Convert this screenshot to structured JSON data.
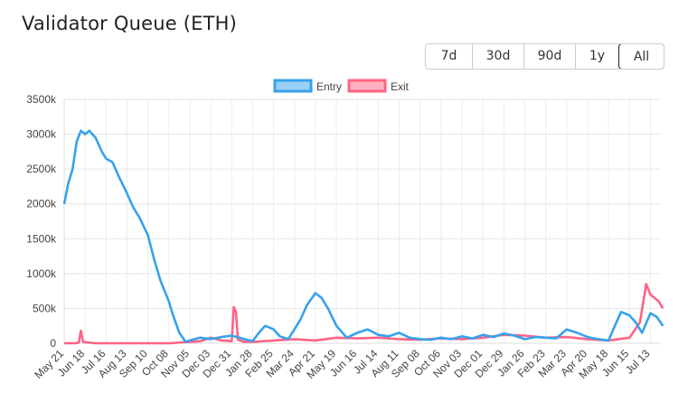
{
  "title": "Validator Queue (ETH)",
  "ranges": [
    "7d",
    "30d",
    "90d",
    "1y",
    "All"
  ],
  "active_range": "All",
  "colors": {
    "entry": "#36a2eb",
    "entry_fill": "#9ad0f5",
    "exit": "#ff6384",
    "exit_fill": "#ffb1c1"
  },
  "chart_data": {
    "type": "line",
    "title": "",
    "xlabel": "",
    "ylabel": "",
    "ylim": [
      0,
      3500
    ],
    "y_ticks": [
      "0",
      "500k",
      "1000k",
      "1500k",
      "2000k",
      "2500k",
      "3000k",
      "3500k"
    ],
    "x_ticks": [
      "May 21",
      "Jun 18",
      "Jul 16",
      "Aug 13",
      "Sep 10",
      "Oct 08",
      "Nov 05",
      "Dec 03",
      "Dec 31",
      "Jan 28",
      "Feb 25",
      "Mar 24",
      "Apr 21",
      "May 19",
      "Jun 16",
      "Jul 14",
      "Aug 11",
      "Sep 08",
      "Oct 06",
      "Nov 03",
      "Dec 01",
      "Dec 29",
      "Jan 26",
      "Feb 23",
      "Mar 23",
      "Apr 20",
      "May 18",
      "Jun 15",
      "Jul 13"
    ],
    "grid": true,
    "legend_position": "top-center",
    "x_index_note": "x = tick index position (0 = May 21, 28 = Jul 13)",
    "series": [
      {
        "name": "Entry",
        "x": [
          0,
          0.2,
          0.4,
          0.6,
          0.8,
          1.0,
          1.2,
          1.5,
          1.8,
          2.0,
          2.3,
          2.6,
          3.0,
          3.3,
          3.6,
          4.0,
          4.3,
          4.6,
          5.0,
          5.2,
          5.5,
          5.8,
          6.0,
          6.5,
          7.0,
          7.5,
          8.0,
          8.5,
          9.0,
          9.3,
          9.6,
          10.0,
          10.3,
          10.7,
          11.0,
          11.3,
          11.6,
          12.0,
          12.3,
          12.6,
          13.0,
          13.5,
          14.0,
          14.5,
          15.0,
          15.5,
          16.0,
          16.5,
          17.0,
          17.5,
          18.0,
          18.5,
          19.0,
          19.5,
          20.0,
          20.5,
          21.0,
          21.5,
          22.0,
          22.5,
          23.0,
          23.5,
          24.0,
          24.5,
          25.0,
          25.5,
          26.0,
          26.3,
          26.6,
          27.0,
          27.3,
          27.6,
          28.0,
          28.3,
          28.6
        ],
        "values": [
          2000,
          2300,
          2500,
          2900,
          3050,
          3000,
          3050,
          2950,
          2750,
          2650,
          2600,
          2400,
          2150,
          1950,
          1800,
          1550,
          1200,
          900,
          600,
          400,
          150,
          20,
          40,
          80,
          60,
          90,
          110,
          70,
          30,
          150,
          250,
          200,
          100,
          60,
          200,
          350,
          550,
          720,
          650,
          500,
          250,
          80,
          150,
          200,
          120,
          100,
          150,
          80,
          60,
          50,
          80,
          60,
          100,
          70,
          120,
          90,
          140,
          110,
          60,
          90,
          80,
          70,
          200,
          150,
          90,
          60,
          40,
          250,
          450,
          400,
          300,
          150,
          430,
          380,
          250
        ]
      },
      {
        "name": "Exit",
        "x": [
          0,
          0.5,
          0.7,
          0.8,
          0.9,
          1.5,
          3.0,
          5.0,
          6.5,
          7.0,
          7.5,
          8.0,
          8.1,
          8.2,
          8.3,
          8.6,
          9.0,
          10.0,
          11.0,
          12.0,
          13.0,
          14.0,
          15.0,
          16.0,
          17.0,
          18.0,
          19.0,
          20.0,
          21.0,
          22.0,
          23.0,
          24.0,
          25.0,
          26.0,
          27.0,
          27.5,
          27.8,
          28.0,
          28.2,
          28.4,
          28.6
        ],
        "values": [
          0,
          0,
          10,
          180,
          20,
          0,
          0,
          0,
          30,
          80,
          40,
          30,
          520,
          450,
          50,
          20,
          20,
          40,
          60,
          40,
          80,
          70,
          80,
          60,
          50,
          70,
          60,
          80,
          120,
          110,
          80,
          90,
          60,
          40,
          80,
          300,
          850,
          700,
          650,
          600,
          500
        ]
      }
    ]
  }
}
